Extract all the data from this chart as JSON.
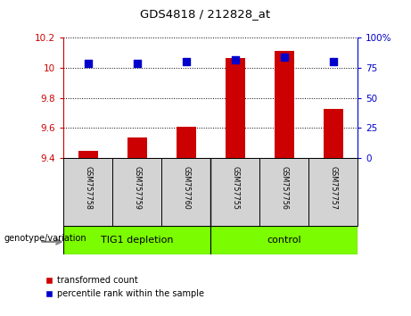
{
  "title": "GDS4818 / 212828_at",
  "samples": [
    "GSM757758",
    "GSM757759",
    "GSM757760",
    "GSM757755",
    "GSM757756",
    "GSM757757"
  ],
  "red_values": [
    9.45,
    9.535,
    9.61,
    10.065,
    10.115,
    9.73
  ],
  "blue_values": [
    79,
    79,
    80,
    82,
    84,
    80
  ],
  "ylim_left": [
    9.4,
    10.2
  ],
  "ylim_right": [
    0,
    100
  ],
  "yticks_left": [
    9.4,
    9.6,
    9.8,
    10.0,
    10.2
  ],
  "yticks_right": [
    0,
    25,
    50,
    75,
    100
  ],
  "left_tick_labels": [
    "9.4",
    "9.6",
    "9.8",
    "10",
    "10.2"
  ],
  "right_tick_labels": [
    "0",
    "25",
    "50",
    "75",
    "100%"
  ],
  "group1_label": "TIG1 depletion",
  "group2_label": "control",
  "group_color": "#7CFC00",
  "bar_color": "#CC0000",
  "dot_color": "#0000CC",
  "legend_red": "transformed count",
  "legend_blue": "percentile rank within the sample",
  "genotype_label": "genotype/variation",
  "left_axis_color": "#CC0000",
  "right_axis_color": "#0000CC",
  "label_bg_color": "#D3D3D3",
  "bar_width": 0.4,
  "dot_size": 30,
  "n_group1": 3,
  "n_group2": 3
}
